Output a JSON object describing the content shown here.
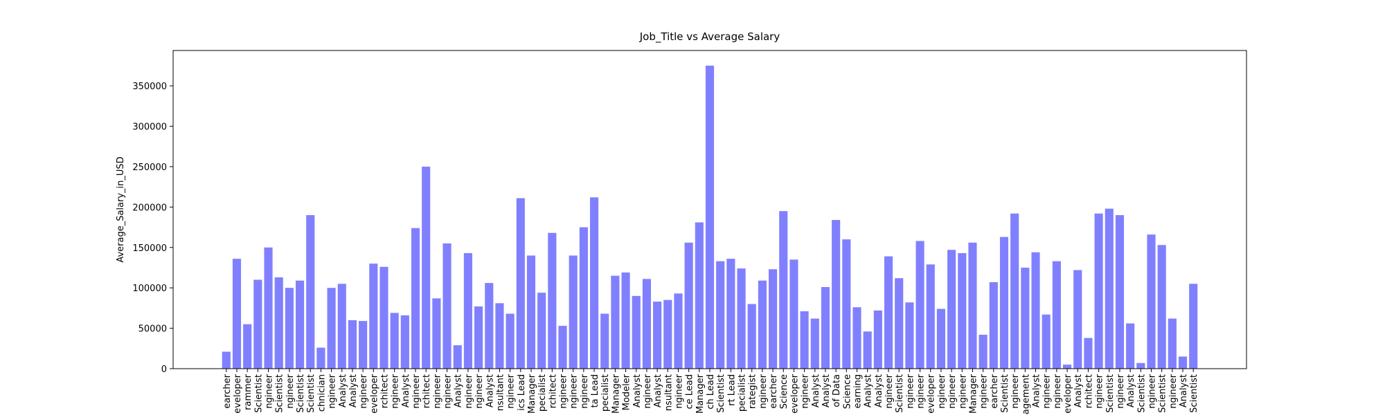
{
  "chart_data": {
    "type": "bar",
    "title": "Job_Title vs Average Salary",
    "ylabel": "Average_Salary_in_USD",
    "color": "#8080ff",
    "categories": [
      "earcher",
      "eveloper",
      "rammer",
      "Scientist",
      "ngineer",
      "Scientist",
      "ngineer",
      "Scientist",
      "Scientist",
      "chnician",
      "ngineer",
      "Analyst",
      "Analyst",
      "ngineer",
      "eveloper",
      "rchitect",
      "ngineer",
      "Analyst",
      "ngineer",
      "rchitect",
      "ngineer",
      "ngineer",
      "Analyst",
      "ngineer",
      "ngineer",
      "Analyst",
      "nsultant",
      "ngineer",
      "ics Lead",
      "Manager",
      "pecialist",
      "rchitect",
      "ngineer",
      "ngineer",
      "ngineer",
      "ta Lead",
      "pecialist",
      "Manager",
      "Modeler",
      "Analyst",
      "ngineer",
      "Analyst",
      "nsultant",
      "ngineer",
      "ce Lead",
      "Manager",
      "ch Lead",
      "Scientist",
      "rt Lead",
      "pecialist",
      "rategist",
      "ngineer",
      "earcher",
      "Science",
      "eveloper",
      "ngineer",
      "Analyst",
      "Analyst",
      "of Data",
      "Science",
      "earning",
      "Analyst",
      "Analyst",
      "ngineer",
      "Scientist",
      "ngineer",
      "ngineer",
      "eveloper",
      "ngineer",
      "ngineer",
      "ngineer",
      "Manager",
      "ngineer",
      "earcher",
      "Scientist",
      "ngineer",
      "agement",
      "Analyst",
      "ngineer",
      "ngineer",
      "eveloper",
      "Analyst",
      "rchitect",
      "ngineer",
      "Scientist",
      "ngineer",
      "Analyst",
      "Scientist",
      "ngineer",
      "Scientist",
      "ngineer",
      "Analyst",
      "Scientist"
    ],
    "values": [
      21000,
      136000,
      55000,
      110000,
      150000,
      113000,
      100000,
      109000,
      190000,
      26000,
      100000,
      105000,
      60000,
      59000,
      130000,
      126000,
      69000,
      66000,
      174000,
      250000,
      87000,
      155000,
      29000,
      143000,
      77000,
      106000,
      81000,
      68000,
      211000,
      140000,
      94000,
      168000,
      53000,
      140000,
      175000,
      212000,
      68000,
      115000,
      119000,
      90000,
      111000,
      83000,
      85000,
      93000,
      156000,
      181000,
      375000,
      133000,
      136000,
      124000,
      80000,
      109000,
      123000,
      195000,
      135000,
      71000,
      62000,
      101000,
      184000,
      160000,
      76000,
      46000,
      72000,
      139000,
      112000,
      82000,
      158000,
      129000,
      74000,
      147000,
      143000,
      156000,
      42000,
      107000,
      163000,
      192000,
      125000,
      144000,
      67000,
      133000,
      5000,
      122000,
      38000,
      192000,
      198000,
      190000,
      56000,
      7000,
      166000,
      153000,
      62000,
      15000,
      105000
    ],
    "ylim": [
      0,
      393750
    ],
    "yticks": [
      0,
      50000,
      100000,
      150000,
      200000,
      250000,
      300000,
      350000
    ]
  }
}
